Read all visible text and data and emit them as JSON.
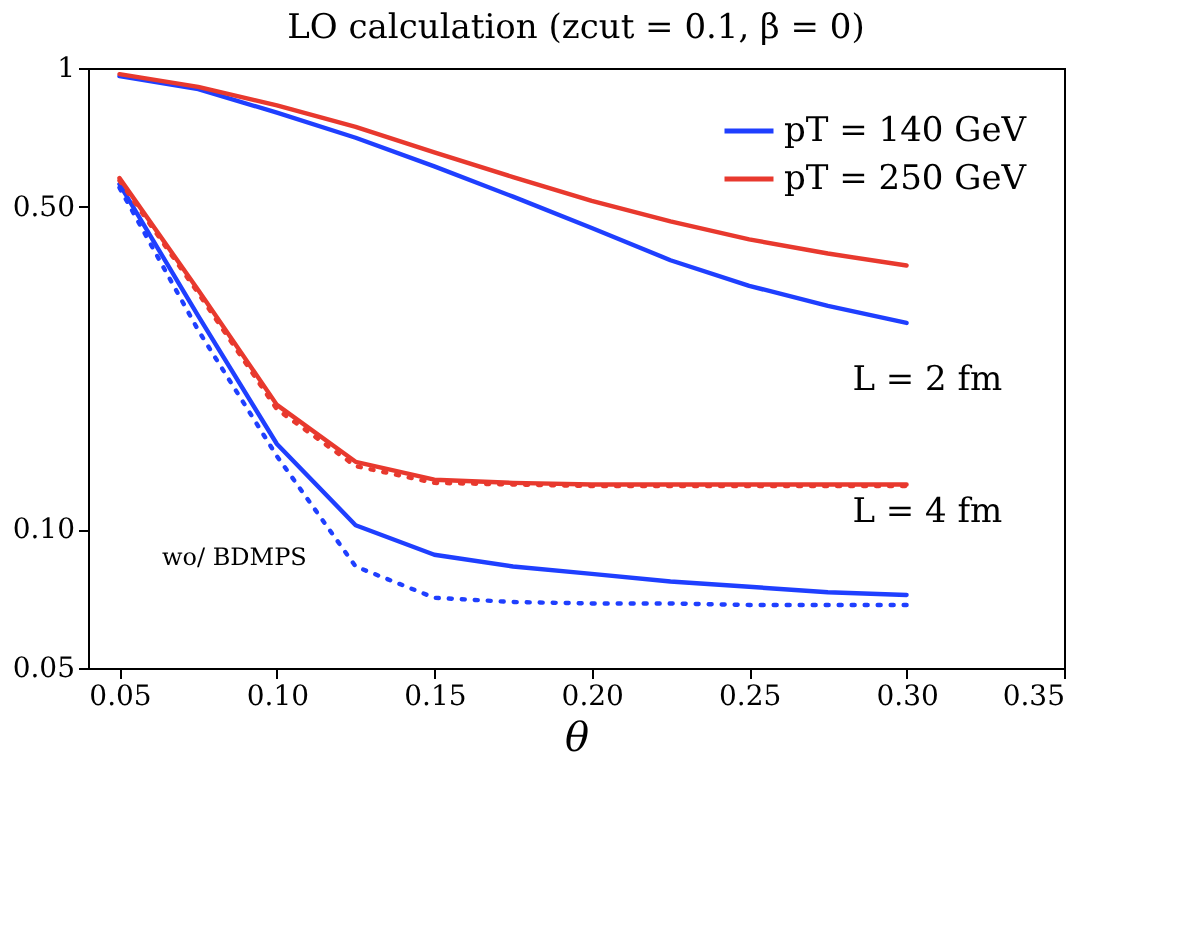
{
  "chart_data": {
    "type": "line",
    "title": "LO calculation (zcut = 0.1, β = 0)",
    "xlabel": "θ",
    "x": [
      0.05,
      0.075,
      0.1,
      0.125,
      0.15,
      0.175,
      0.2,
      0.225,
      0.25,
      0.275,
      0.3
    ],
    "series": [
      {
        "name": "pT = 140 GeV",
        "color": "#1f3fff",
        "values": [
          0.96,
          0.9,
          0.8,
          0.706,
          0.612,
          0.526,
          0.45,
          0.383,
          0.337,
          0.305,
          0.28
        ]
      },
      {
        "name": "pT = 250 GeV",
        "color": "#e8392e",
        "values": [
          0.97,
          0.91,
          0.83,
          0.745,
          0.656,
          0.58,
          0.515,
          0.465,
          0.425,
          0.396,
          0.373
        ]
      },
      {
        "color": "#1f3fff",
        "values": [
          0.56,
          0.29,
          0.153,
          0.102,
          0.088,
          0.083,
          0.08,
          0.077,
          0.075,
          0.073,
          0.072
        ]
      },
      {
        "color": "#e8392e",
        "values": [
          0.577,
          0.33,
          0.186,
          0.14,
          0.128,
          0.126,
          0.125,
          0.125,
          0.125,
          0.125,
          0.125
        ]
      },
      {
        "color": "#1f3fff",
        "line_style": "dotted",
        "values": [
          0.55,
          0.27,
          0.144,
          0.083,
          0.071,
          0.0695,
          0.069,
          0.069,
          0.0685,
          0.0685,
          0.0685
        ]
      },
      {
        "color": "#e8392e",
        "line_style": "dotted",
        "values": [
          0.57,
          0.325,
          0.182,
          0.137,
          0.126,
          0.125,
          0.124,
          0.124,
          0.124,
          0.124,
          0.124
        ]
      }
    ],
    "log": "y",
    "xlim": [
      0.04,
      0.35
    ],
    "ylim": [
      0.05,
      1
    ],
    "xticks": [
      {
        "value": 0.05,
        "label": "0.05"
      },
      {
        "value": 0.1,
        "label": "0.10"
      },
      {
        "value": 0.15,
        "label": "0.15"
      },
      {
        "value": 0.2,
        "label": "0.20"
      },
      {
        "value": 0.25,
        "label": "0.25"
      },
      {
        "value": 0.3,
        "label": "0.30"
      },
      {
        "value": 0.35,
        "label": "0.35"
      }
    ],
    "yticks": [
      {
        "value": 0.05,
        "label": "0.05"
      },
      {
        "value": 0.1,
        "label": "0.10"
      },
      {
        "value": 0.5,
        "label": "0.50"
      },
      1
    ],
    "legend": "top right",
    "grid": false,
    "annotations": [
      "L = 2 fm",
      "L = 4 fm",
      "wo/ BDMPS"
    ]
  }
}
